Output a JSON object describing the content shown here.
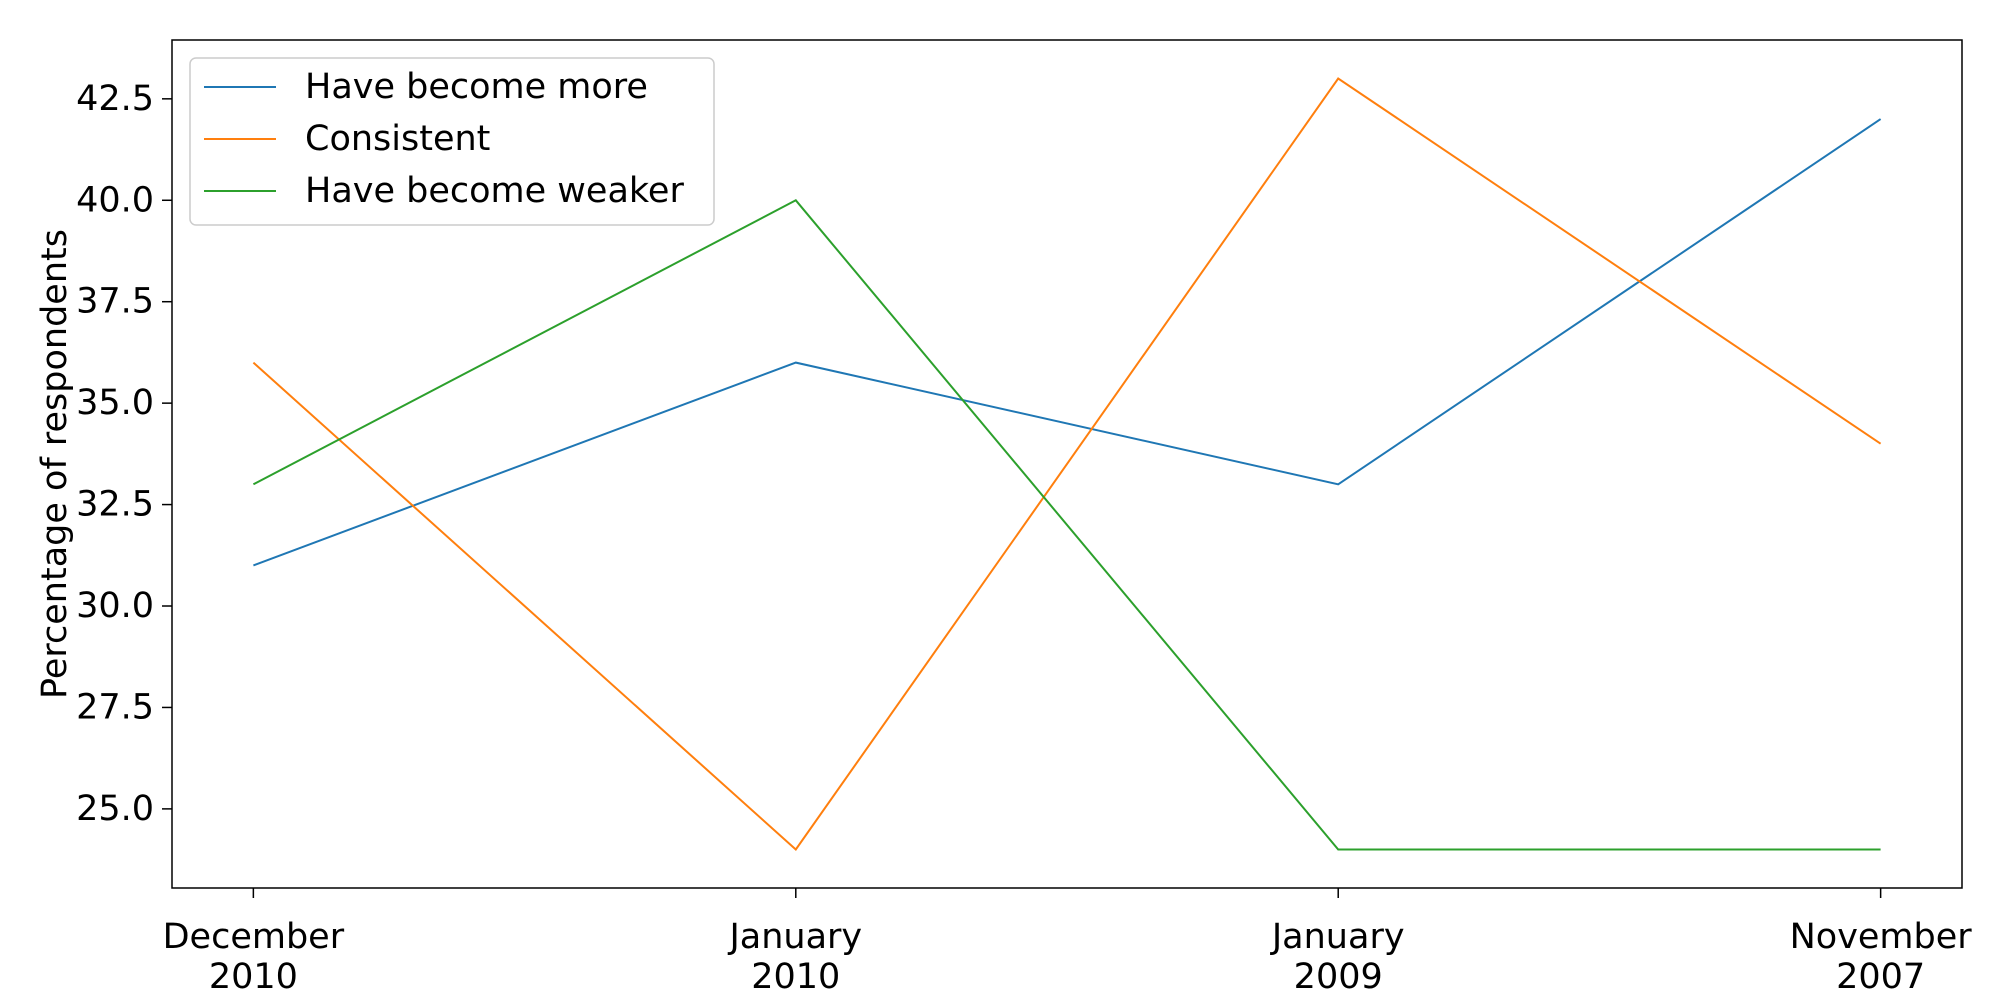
{
  "chart_data": {
    "type": "line",
    "title": "",
    "xlabel": "",
    "ylabel": "Percentage of respondents",
    "categories": [
      [
        "December",
        "2010"
      ],
      [
        "January",
        "2010"
      ],
      [
        "January",
        "2009"
      ],
      [
        "November",
        "2007"
      ]
    ],
    "series": [
      {
        "name": "Have become more",
        "color": "#1f77b4",
        "values": [
          31,
          36,
          33,
          42
        ]
      },
      {
        "name": "Consistent",
        "color": "#ff7f0e",
        "values": [
          36,
          24,
          43,
          34
        ]
      },
      {
        "name": "Have become weaker",
        "color": "#2ca02c",
        "values": [
          33,
          40,
          24,
          24
        ]
      }
    ],
    "ylim": [
      23.05,
      43.95
    ],
    "yticks": [
      "25.0",
      "27.5",
      "30.0",
      "32.5",
      "35.0",
      "37.5",
      "40.0",
      "42.5"
    ],
    "grid": false,
    "legend_position": "upper-left"
  }
}
